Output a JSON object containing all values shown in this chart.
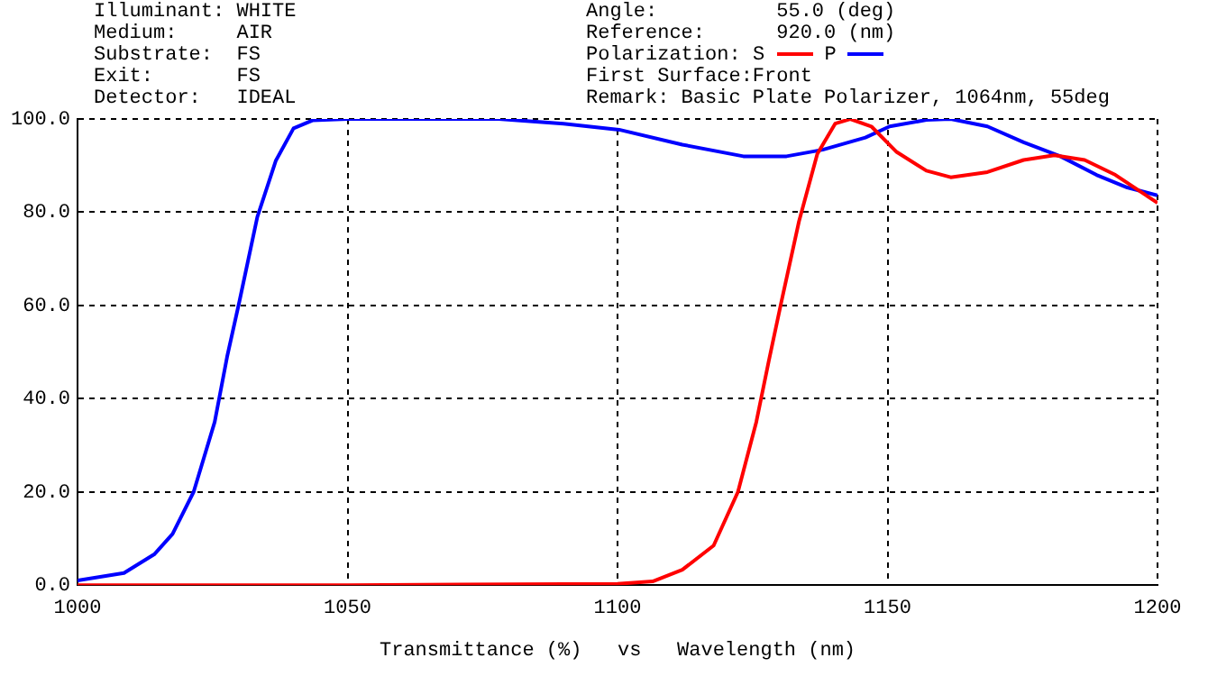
{
  "chart_data": {
    "type": "line",
    "annotations": [
      "Illuminant: WHITE",
      "Medium:     AIR",
      "Substrate:  FS",
      "Exit:       FS",
      "Detector:   IDEAL",
      "Angle:          55.0 (deg)",
      "Reference:      920.0 (nm)",
      "First Surface:Front",
      "Remark: Basic Plate Polarizer, 1064nm, 55deg"
    ],
    "legend_title": "Polarization:",
    "legend": "top right",
    "xlabel": "Transmittance (%)   vs   Wavelength (nm)",
    "xlim": [
      1000,
      1200
    ],
    "xticks": [
      1000,
      1050,
      1100,
      1150,
      1200
    ],
    "ylim": [
      0,
      100
    ],
    "yticks": [
      {
        "value": 0,
        "label": "0.0"
      },
      {
        "value": 20,
        "label": "20.0"
      },
      {
        "value": 40,
        "label": "40.0"
      },
      {
        "value": 60,
        "label": "60.0"
      },
      {
        "value": 80,
        "label": "80.0"
      },
      {
        "value": 100,
        "label": "100.0"
      }
    ],
    "grid": true,
    "line_style": "solid",
    "marker": "none",
    "series": [
      {
        "name": "S",
        "color": "#ff0000",
        "x": [
          1000,
          1050,
          1100,
          1106.5,
          1112,
          1117.8,
          1122.3,
          1125.7,
          1128,
          1130.2,
          1133.6,
          1137,
          1140.3,
          1143.1,
          1147,
          1151.6,
          1157.2,
          1161.7,
          1168.5,
          1175.2,
          1180.9,
          1186.5,
          1192.2,
          1200
        ],
        "values": [
          0,
          0,
          0.3,
          0.8,
          3.3,
          8.5,
          20,
          35,
          48,
          60,
          78,
          92.5,
          99,
          100,
          98.4,
          93,
          88.9,
          87.5,
          88.6,
          91.2,
          92.2,
          91.2,
          88,
          82
        ]
      },
      {
        "name": "P",
        "color": "#0000ff",
        "x": [
          1000,
          1008.6,
          1014.2,
          1017.6,
          1021.5,
          1025.4,
          1027.7,
          1030,
          1033.3,
          1036.7,
          1040,
          1043.5,
          1050,
          1078,
          1090,
          1100.3,
          1112,
          1123.3,
          1131.3,
          1138,
          1145.9,
          1150.4,
          1157.2,
          1161.7,
          1168.5,
          1175.2,
          1182,
          1188.7,
          1194.4,
          1200
        ],
        "values": [
          1,
          2.6,
          6.6,
          11,
          20,
          35,
          49,
          61,
          79,
          91,
          98,
          99.7,
          100,
          100,
          99,
          97.7,
          94.5,
          92,
          92,
          93.4,
          96,
          98.4,
          99.8,
          100,
          98.4,
          95,
          92,
          88,
          85.3,
          83.6
        ]
      }
    ]
  }
}
